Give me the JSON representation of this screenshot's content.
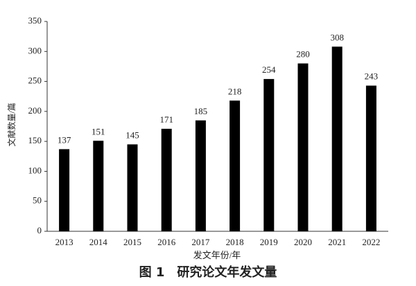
{
  "chart_data": {
    "type": "bar",
    "caption": "图 1　研究论文年发文量",
    "x_label": "发文年份/年",
    "y_label": "文献数量/篇",
    "categories": [
      "2013",
      "2014",
      "2015",
      "2016",
      "2017",
      "2018",
      "2019",
      "2020",
      "2021",
      "2022"
    ],
    "values": [
      137,
      151,
      145,
      171,
      185,
      218,
      254,
      280,
      308,
      243
    ],
    "color": "#000000",
    "ylim": [
      0,
      350
    ],
    "yticks": [
      0,
      50,
      100,
      150,
      200,
      250,
      300,
      350
    ],
    "grid": false
  }
}
